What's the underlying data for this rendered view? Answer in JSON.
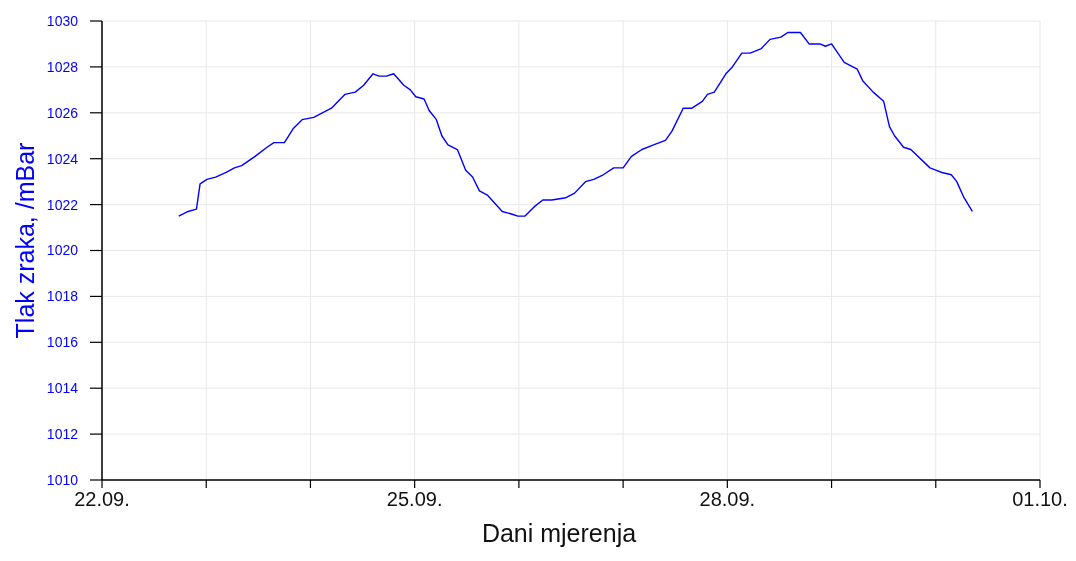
{
  "chart_data": {
    "type": "line",
    "xlabel": "Dani mjerenja",
    "ylabel": "Tlak zraka, /mBar",
    "x": [
      "--09-22T17:40",
      "--09-22T19:50",
      "--09-22T21:45",
      "--09-22T22:35",
      "--09-23T00:10",
      "--09-23T02:10",
      "--09-23T04:35",
      "--09-23T06:30",
      "--09-23T08:10",
      "--09-23T11:15",
      "--09-23T14:00",
      "--09-23T15:35",
      "--09-23T18:00",
      "--09-23T20:00",
      "--09-23T22:05",
      "--09-24T00:45",
      "--09-24T04:50",
      "--09-24T07:55",
      "--09-24T10:20",
      "--09-24T12:15",
      "--09-24T14:25",
      "--09-24T15:50",
      "--09-24T17:30",
      "--09-24T19:10",
      "--09-24T21:30",
      "--09-24T23:00",
      "--09-25T00:15",
      "--09-25T02:10",
      "--09-25T03:20",
      "--09-25T05:00",
      "--09-25T06:15",
      "--09-25T07:40",
      "--09-25T09:50",
      "--09-25T11:45",
      "--09-25T13:20",
      "--09-25T14:55",
      "--09-25T16:50",
      "--09-25T20:10",
      "--09-25T22:05",
      "--09-25T23:45",
      "--09-26T01:25",
      "--09-26T03:30",
      "--09-26T05:30",
      "--09-26T07:35",
      "--09-26T10:50",
      "--09-26T12:50",
      "--09-26T15:20",
      "--09-26T17:15",
      "--09-26T19:25",
      "--09-26T21:50",
      "--09-27T00:00",
      "--09-27T01:55",
      "--09-27T04:20",
      "--09-27T07:00",
      "--09-27T09:45",
      "--09-27T11:15",
      "--09-27T13:50",
      "--09-27T15:50",
      "--09-27T18:15",
      "--09-27T19:25",
      "--09-27T21:00",
      "--09-27T23:40",
      "--09-28T01:10",
      "--09-28T03:20",
      "--09-28T05:15",
      "--09-28T07:50",
      "--09-28T09:50",
      "--09-28T12:20",
      "--09-28T13:55",
      "--09-28T16:50",
      "--09-28T18:50",
      "--09-28T21:20",
      "--09-28T22:35",
      "--09-29T00:00",
      "--09-29T02:55",
      "--09-29T05:55",
      "--09-29T07:10",
      "--09-29T09:35",
      "--09-29T12:00",
      "--09-29T13:20",
      "--09-29T14:30",
      "--09-29T16:35",
      "--09-29T18:15",
      "--09-29T22:40",
      "--09-30T00:00",
      "--09-30T01:25",
      "--09-30T03:35",
      "--09-30T04:50",
      "--09-30T06:30",
      "--09-30T08:25"
    ],
    "series": [
      {
        "color": "#0000ff",
        "values": [
          1021.5,
          1021.7,
          1021.8,
          1022.9,
          1023.1,
          1023.2,
          1023.4,
          1023.6,
          1023.7,
          1024.1,
          1024.5,
          1024.7,
          1024.7,
          1025.3,
          1025.7,
          1025.8,
          1026.2,
          1026.8,
          1026.9,
          1027.2,
          1027.7,
          1027.6,
          1027.6,
          1027.7,
          1027.2,
          1027.0,
          1026.7,
          1026.6,
          1026.1,
          1025.7,
          1025.0,
          1024.6,
          1024.4,
          1023.5,
          1023.2,
          1022.6,
          1022.4,
          1021.7,
          1021.6,
          1021.5,
          1021.5,
          1021.9,
          1022.2,
          1022.2,
          1022.3,
          1022.5,
          1023.0,
          1023.1,
          1023.3,
          1023.6,
          1023.6,
          1024.1,
          1024.4,
          1024.6,
          1024.8,
          1025.2,
          1026.2,
          1026.2,
          1026.5,
          1026.8,
          1026.9,
          1027.7,
          1028.0,
          1028.6,
          1028.6,
          1028.8,
          1029.2,
          1029.3,
          1029.5,
          1029.5,
          1029.0,
          1029.0,
          1028.9,
          1029.0,
          1028.2,
          1027.9,
          1027.4,
          1026.9,
          1026.5,
          1025.4,
          1025.0,
          1024.5,
          1024.4,
          1023.6,
          1023.5,
          1023.4,
          1023.3,
          1023.0,
          1022.3,
          1021.7
        ]
      }
    ],
    "xlim": [
      "--09-22",
      "--10-01"
    ],
    "xticks": [
      {
        "value": "--09-22",
        "label": "22.09."
      },
      {
        "value": "--09-23",
        "label": null
      },
      {
        "value": "--09-24",
        "label": null
      },
      {
        "value": "--09-25",
        "label": "25.09."
      },
      {
        "value": "--09-26",
        "label": null
      },
      {
        "value": "--09-27",
        "label": null
      },
      {
        "value": "--09-28",
        "label": "28.09."
      },
      {
        "value": "--09-29",
        "label": null
      },
      {
        "value": "--09-30",
        "label": null
      },
      {
        "value": "--10-01",
        "label": "01.10."
      }
    ],
    "ylim": [
      1010,
      1030
    ],
    "yticks": [
      1010,
      1012,
      1014,
      1016,
      1018,
      1020,
      1022,
      1024,
      1026,
      1028,
      1030
    ],
    "grid": true,
    "marker": "none",
    "line_style": "solid"
  }
}
